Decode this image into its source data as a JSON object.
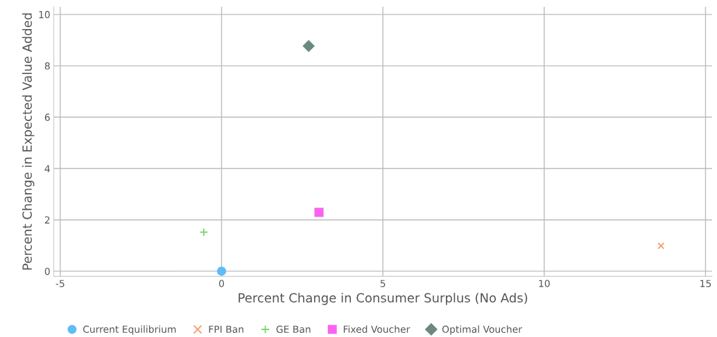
{
  "chart_data": {
    "type": "scatter",
    "xlabel": "Percent Change in Consumer Surplus (No Ads)",
    "ylabel": "Percent Change in Expected Value Added",
    "xlim": [
      -5.2,
      15.2
    ],
    "ylim": [
      -0.2,
      10.3
    ],
    "xticks": [
      -5,
      0,
      5,
      10,
      15
    ],
    "yticks": [
      0,
      2,
      4,
      6,
      8,
      10
    ],
    "grid": true,
    "legend": "bottom",
    "series": [
      {
        "name": "Current Equilibrium",
        "color": "#5ebcf7",
        "marker": "circle",
        "x": [
          0
        ],
        "values": [
          0
        ]
      },
      {
        "name": "FPI Ban",
        "color": "#f59b6a",
        "marker": "cross",
        "x": [
          13.62
        ],
        "values": [
          0.99
        ]
      },
      {
        "name": "GE Ban",
        "color": "#7fd66e",
        "marker": "plus",
        "x": [
          -0.55
        ],
        "values": [
          1.52
        ]
      },
      {
        "name": "Fixed Voucher",
        "color": "#f864f0",
        "marker": "square",
        "x": [
          3.02
        ],
        "values": [
          2.29
        ]
      },
      {
        "name": "Optimal Voucher",
        "color": "#6b8a7e",
        "marker": "diamond",
        "x": [
          2.7
        ],
        "values": [
          8.77
        ]
      }
    ]
  }
}
